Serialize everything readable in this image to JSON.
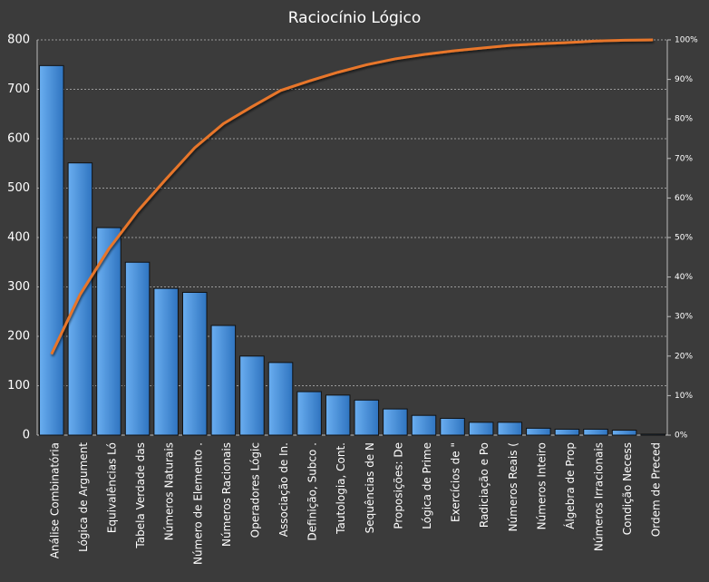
{
  "chart_data": {
    "type": "pareto",
    "title": "Raciocínio Lógico",
    "categories": [
      "Análise Combinatória",
      "Lógica de Argument",
      "Equivalências Ló",
      "Tabela Verdade das",
      "Números Naturais",
      "Número de Elemento .",
      "Números Racionais",
      "Operadores Lógic",
      "Associação de In.",
      "Definição, Subco .",
      "Tautologia, Cont.",
      "Sequências de N",
      "Proposições: De",
      "Lógica de Prime",
      "Exercícios de \"",
      "Radiciação e Po",
      "Números Reais (",
      "Números Inteiro",
      "Álgebra de Prop",
      "Números Irracionais",
      "Condição Necess",
      "Ordem de Preced"
    ],
    "series": [
      {
        "color": "#4a90d9",
        "values": [
          748,
          551,
          420,
          350,
          297,
          289,
          222,
          160,
          147,
          88,
          81,
          71,
          53,
          40,
          34,
          26,
          26,
          14,
          12,
          12,
          10,
          2
        ]
      },
      {
        "color": "#e8762b",
        "axis": "y2",
        "values": [
          20.5,
          35.6,
          47.1,
          56.6,
          64.8,
          72.7,
          78.8,
          83.1,
          87.2,
          89.6,
          91.8,
          93.7,
          95.2,
          96.3,
          97.2,
          97.9,
          98.6,
          99.0,
          99.3,
          99.7,
          99.9,
          100
        ]
      }
    ],
    "ylim": [
      0,
      800
    ],
    "yticks": [
      0,
      100,
      200,
      300,
      400,
      500,
      600,
      700,
      800
    ],
    "y2lim": [
      0,
      100
    ],
    "y2ticks": [
      {
        "value": 0,
        "label": "0%"
      },
      {
        "value": 10,
        "label": "10%"
      },
      {
        "value": 20,
        "label": "20%"
      },
      {
        "value": 30,
        "label": "30%"
      },
      {
        "value": 40,
        "label": "40%"
      },
      {
        "value": 50,
        "label": "50%"
      },
      {
        "value": 60,
        "label": "60%"
      },
      {
        "value": 70,
        "label": "70%"
      },
      {
        "value": 80,
        "label": "80%"
      },
      {
        "value": 90,
        "label": "90%"
      },
      {
        "value": 100,
        "label": "100%"
      }
    ],
    "grid": true
  }
}
